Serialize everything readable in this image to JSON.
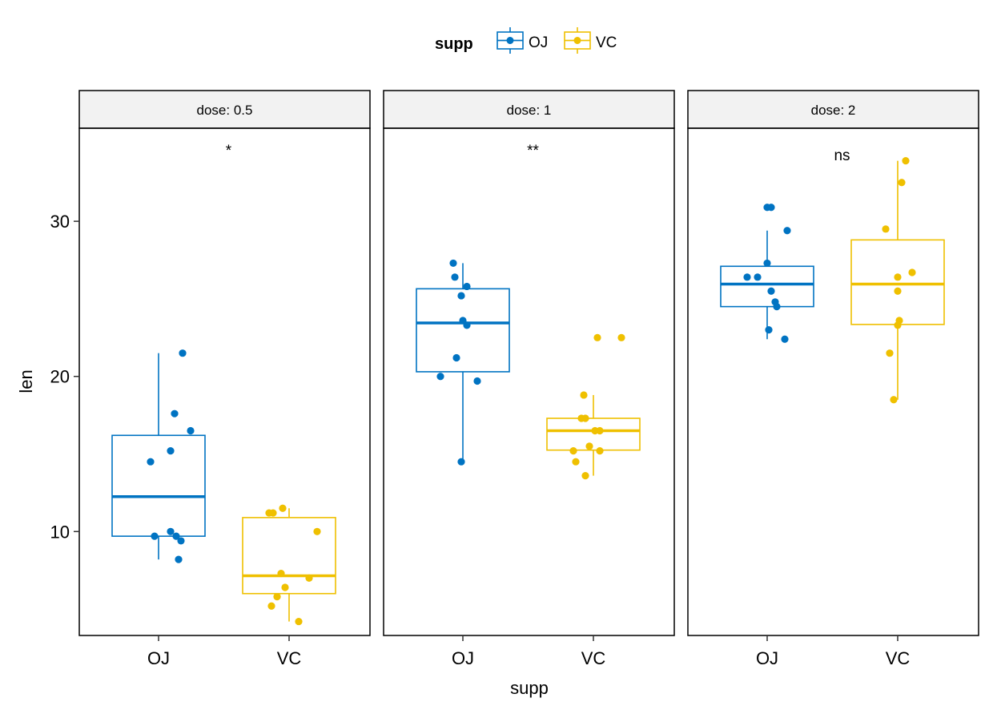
{
  "chart_data": {
    "type": "boxplot",
    "facet_var": "dose",
    "facets": [
      {
        "label": "dose: 0.5",
        "signif": "*"
      },
      {
        "label": "dose: 1",
        "signif": "**"
      },
      {
        "label": "dose: 2",
        "signif": "ns"
      }
    ],
    "categories": [
      "OJ",
      "VC"
    ],
    "xlabel": "supp",
    "ylabel": "len",
    "ylim": [
      3.3,
      36
    ],
    "yticks": [
      10,
      20,
      30
    ],
    "legend": {
      "title": "supp",
      "position": "top",
      "entries": [
        {
          "label": "OJ",
          "color": "#0073C2"
        },
        {
          "label": "VC",
          "color": "#EFC000"
        }
      ]
    },
    "groups": [
      {
        "facet": 0,
        "category": "OJ",
        "color": "#0073C2",
        "box": {
          "whisker_low": 8.2,
          "q1": 9.7,
          "median": 12.25,
          "q3": 16.2,
          "whisker_high": 21.5
        },
        "points": [
          [
            0.3,
            21.5
          ],
          [
            0.2,
            17.6
          ],
          [
            0.4,
            16.5
          ],
          [
            0.15,
            15.2
          ],
          [
            -0.1,
            14.5
          ],
          [
            0.15,
            10.0
          ],
          [
            -0.05,
            9.7
          ],
          [
            0.22,
            9.7
          ],
          [
            0.28,
            9.4
          ],
          [
            0.25,
            8.2
          ]
        ]
      },
      {
        "facet": 0,
        "category": "VC",
        "color": "#EFC000",
        "box": {
          "whisker_low": 4.2,
          "q1": 6.0,
          "median": 7.15,
          "q3": 10.9,
          "whisker_high": 11.5
        },
        "points": [
          [
            -0.25,
            11.2
          ],
          [
            -0.2,
            11.2
          ],
          [
            -0.08,
            11.5
          ],
          [
            0.35,
            10.0
          ],
          [
            -0.1,
            7.3
          ],
          [
            0.25,
            7.0
          ],
          [
            -0.05,
            6.4
          ],
          [
            -0.15,
            5.8
          ],
          [
            -0.22,
            5.2
          ],
          [
            0.12,
            4.2
          ]
        ]
      },
      {
        "facet": 1,
        "category": "OJ",
        "color": "#0073C2",
        "box": {
          "whisker_low": 14.5,
          "q1": 20.3,
          "median": 23.45,
          "q3": 25.65,
          "whisker_high": 27.3
        },
        "points": [
          [
            -0.12,
            27.3
          ],
          [
            -0.1,
            26.4
          ],
          [
            0.05,
            25.8
          ],
          [
            -0.02,
            25.2
          ],
          [
            0.0,
            23.6
          ],
          [
            0.05,
            23.3
          ],
          [
            -0.08,
            21.2
          ],
          [
            -0.28,
            20.0
          ],
          [
            0.18,
            19.7
          ],
          [
            -0.02,
            14.5
          ]
        ]
      },
      {
        "facet": 1,
        "category": "VC",
        "color": "#EFC000",
        "box": {
          "whisker_low": 13.6,
          "q1": 15.25,
          "median": 16.5,
          "q3": 17.3,
          "whisker_high": 18.8
        },
        "points": [
          [
            0.05,
            22.5
          ],
          [
            0.35,
            22.5
          ],
          [
            -0.12,
            18.8
          ],
          [
            -0.15,
            17.3
          ],
          [
            -0.1,
            17.3
          ],
          [
            0.02,
            16.5
          ],
          [
            0.08,
            16.5
          ],
          [
            -0.05,
            15.5
          ],
          [
            -0.25,
            15.2
          ],
          [
            0.08,
            15.2
          ],
          [
            -0.22,
            14.5
          ],
          [
            -0.1,
            13.6
          ]
        ]
      },
      {
        "facet": 2,
        "category": "OJ",
        "color": "#0073C2",
        "box": {
          "whisker_low": 22.4,
          "q1": 24.5,
          "median": 25.95,
          "q3": 27.1,
          "whisker_high": 29.4
        },
        "points": [
          [
            0.0,
            30.9
          ],
          [
            0.05,
            30.9
          ],
          [
            0.25,
            29.4
          ],
          [
            0.0,
            27.3
          ],
          [
            -0.25,
            26.4
          ],
          [
            -0.12,
            26.4
          ],
          [
            0.05,
            25.5
          ],
          [
            0.1,
            24.8
          ],
          [
            0.12,
            24.5
          ],
          [
            0.02,
            23.0
          ],
          [
            0.22,
            22.4
          ]
        ]
      },
      {
        "facet": 2,
        "category": "VC",
        "color": "#EFC000",
        "box": {
          "whisker_low": 18.5,
          "q1": 23.35,
          "median": 25.95,
          "q3": 28.8,
          "whisker_high": 33.9
        },
        "points": [
          [
            0.1,
            33.9
          ],
          [
            0.05,
            32.5
          ],
          [
            -0.15,
            29.5
          ],
          [
            0.18,
            26.7
          ],
          [
            0.0,
            26.4
          ],
          [
            0.0,
            25.5
          ],
          [
            0.0,
            23.3
          ],
          [
            0.02,
            23.6
          ],
          [
            -0.1,
            21.5
          ],
          [
            -0.05,
            18.5
          ]
        ]
      }
    ]
  }
}
